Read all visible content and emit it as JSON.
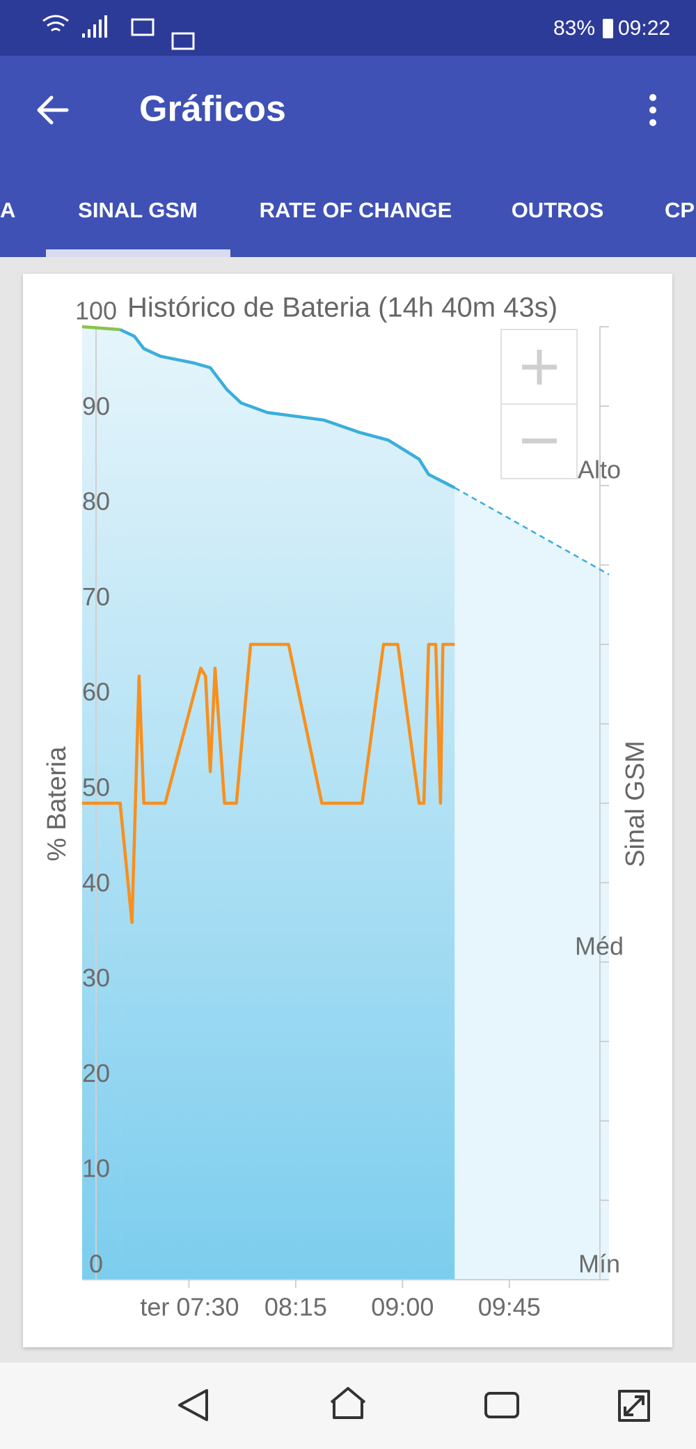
{
  "status_bar": {
    "battery": "83%",
    "time": "09:22"
  },
  "app_bar": {
    "title": "Gráficos"
  },
  "tabs": [
    "A",
    "SINAL GSM",
    "RATE OF CHANGE",
    "OUTROS",
    "CP"
  ],
  "chart_data": {
    "type": "line",
    "title": "Histórico de Bateria (14h 40m 43s)",
    "y_label": "% Bateria",
    "y2_label": "Sinal GSM",
    "xlim": [
      "06:45",
      "10:27"
    ],
    "xticks": [
      {
        "value": "07:30",
        "label": "ter 07:30"
      },
      "08:15",
      "09:00",
      "09:45"
    ],
    "ylim": [
      0,
      100
    ],
    "yticks": [
      0,
      10,
      20,
      30,
      40,
      50,
      60,
      70,
      80,
      90,
      100
    ],
    "y2lim": [
      0,
      12
    ],
    "y2ticks": [
      {
        "value": 0,
        "label": "Mín"
      },
      {
        "value": 1,
        "label": null
      },
      {
        "value": 2,
        "label": null
      },
      {
        "value": 3,
        "label": null
      },
      {
        "value": 4,
        "label": "Méd"
      },
      {
        "value": 5,
        "label": null
      },
      {
        "value": 6,
        "label": null
      },
      {
        "value": 7,
        "label": null
      },
      {
        "value": 8,
        "label": null
      },
      {
        "value": 9,
        "label": null
      },
      {
        "value": 10,
        "label": "Alto"
      },
      {
        "value": 11,
        "label": null
      },
      {
        "value": 12,
        "label": null
      }
    ],
    "series": [
      {
        "color": "#8bc34a",
        "area": true,
        "x": [
          "06:45",
          "07:01"
        ],
        "values": [
          100,
          99.7
        ]
      },
      {
        "color": "#3aaedc",
        "area": true,
        "x": [
          "07:01",
          "07:07",
          "07:11",
          "07:18",
          "07:32",
          "07:39",
          "07:46",
          "07:52",
          "08:03",
          "08:27",
          "08:42",
          "08:54",
          "09:07",
          "09:11",
          "09:22"
        ],
        "values": [
          99.7,
          99,
          97.7,
          96.9,
          96.2,
          95.7,
          93.4,
          92,
          91,
          90.2,
          88.9,
          88.1,
          86.1,
          84.5,
          83.1
        ]
      },
      {
        "color": "#3aaedc",
        "area": true,
        "dashed": true,
        "x": [
          "09:22",
          "10:27"
        ],
        "values": [
          83.1,
          74
        ]
      },
      {
        "color": "#f7901e",
        "axis": "y2",
        "x": [
          "06:45",
          "07:01",
          "07:06",
          "07:09",
          "07:11",
          "07:20",
          "07:35",
          "07:37",
          "07:39",
          "07:41",
          "07:45",
          "07:50",
          "07:56",
          "08:12",
          "08:26",
          "08:43",
          "08:52",
          "08:58",
          "09:07",
          "09:09",
          "09:11",
          "09:14",
          "09:16",
          "09:17",
          "09:22"
        ],
        "values": [
          6,
          6,
          4.5,
          7.6,
          6,
          6,
          7.7,
          7.6,
          6.4,
          7.7,
          6,
          6,
          8,
          8,
          6,
          6,
          8,
          8,
          6,
          6,
          8,
          8,
          6,
          8,
          8
        ]
      }
    ]
  }
}
